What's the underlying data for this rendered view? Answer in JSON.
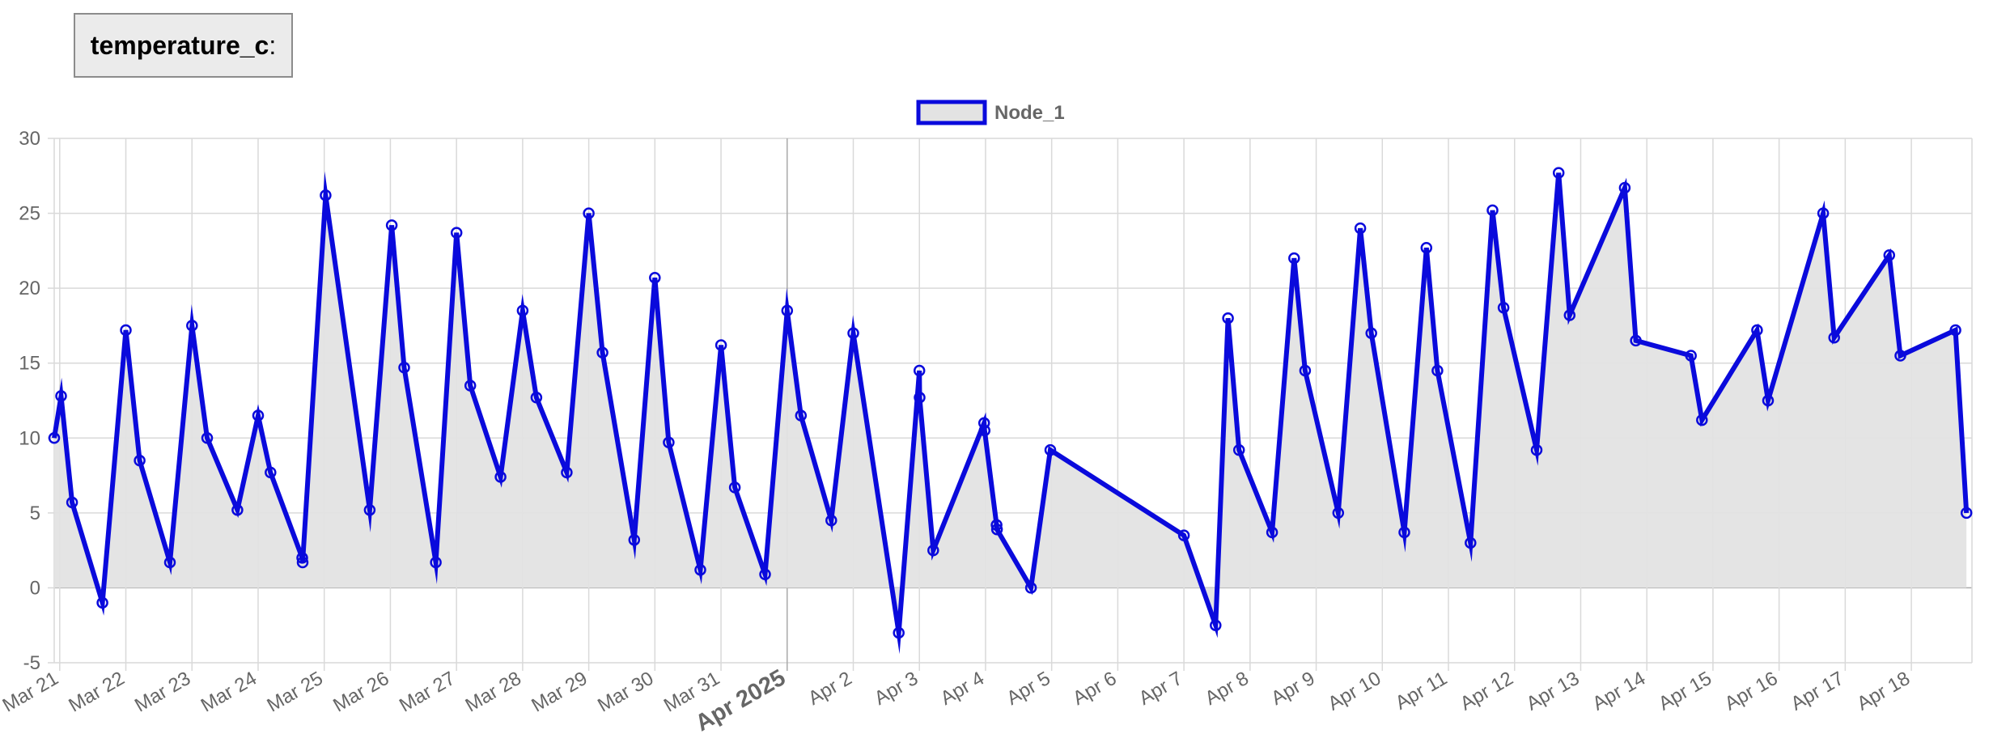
{
  "field": {
    "name": "temperature_c",
    "suffix": ":"
  },
  "colors": {
    "series": "#0a0adc",
    "fill": "#e3e3e3",
    "grid": "#d9d9d9",
    "axis": "#999999",
    "tick_text": "#666666"
  },
  "chart_data": {
    "type": "area",
    "title": "",
    "xlabel": "",
    "ylabel": "",
    "ylim": [
      -5,
      30
    ],
    "yticks": [
      30,
      25,
      20,
      15,
      10,
      5,
      0,
      -5
    ],
    "grid": true,
    "legend_position": "top-center",
    "xlim": [
      "2025-03-20T22:00",
      "2025-04-18T22:00"
    ],
    "xticks": [
      {
        "label": "Mar 21",
        "date": "2025-03-21",
        "major": false
      },
      {
        "label": "Mar 22",
        "date": "2025-03-22",
        "major": false
      },
      {
        "label": "Mar 23",
        "date": "2025-03-23",
        "major": false
      },
      {
        "label": "Mar 24",
        "date": "2025-03-24",
        "major": false
      },
      {
        "label": "Mar 25",
        "date": "2025-03-25",
        "major": false
      },
      {
        "label": "Mar 26",
        "date": "2025-03-26",
        "major": false
      },
      {
        "label": "Mar 27",
        "date": "2025-03-27",
        "major": false
      },
      {
        "label": "Mar 28",
        "date": "2025-03-28",
        "major": false
      },
      {
        "label": "Mar 29",
        "date": "2025-03-29",
        "major": false
      },
      {
        "label": "Mar 30",
        "date": "2025-03-30",
        "major": false
      },
      {
        "label": "Mar 31",
        "date": "2025-03-31",
        "major": false
      },
      {
        "label": "Apr 2025",
        "date": "2025-04-01",
        "major": true
      },
      {
        "label": "Apr 2",
        "date": "2025-04-02",
        "major": false
      },
      {
        "label": "Apr 3",
        "date": "2025-04-03",
        "major": false
      },
      {
        "label": "Apr 4",
        "date": "2025-04-04",
        "major": false
      },
      {
        "label": "Apr 5",
        "date": "2025-04-05",
        "major": false
      },
      {
        "label": "Apr 6",
        "date": "2025-04-06",
        "major": false
      },
      {
        "label": "Apr 7",
        "date": "2025-04-07",
        "major": false
      },
      {
        "label": "Apr 8",
        "date": "2025-04-08",
        "major": false
      },
      {
        "label": "Apr 9",
        "date": "2025-04-09",
        "major": false
      },
      {
        "label": "Apr 10",
        "date": "2025-04-10",
        "major": false
      },
      {
        "label": "Apr 11",
        "date": "2025-04-11",
        "major": false
      },
      {
        "label": "Apr 12",
        "date": "2025-04-12",
        "major": false
      },
      {
        "label": "Apr 13",
        "date": "2025-04-13",
        "major": false
      },
      {
        "label": "Apr 14",
        "date": "2025-04-14",
        "major": false
      },
      {
        "label": "Apr 15",
        "date": "2025-04-15",
        "major": false
      },
      {
        "label": "Apr 16",
        "date": "2025-04-16",
        "major": false
      },
      {
        "label": "Apr 17",
        "date": "2025-04-17",
        "major": false
      },
      {
        "label": "Apr 18",
        "date": "2025-04-18",
        "major": false
      }
    ],
    "series": [
      {
        "name": "Node_1",
        "points": [
          {
            "x": "2025-03-20T22:00",
            "y": 10
          },
          {
            "x": "2025-03-21T00:30",
            "y": 12.8
          },
          {
            "x": "2025-03-21T04:30",
            "y": 5.7
          },
          {
            "x": "2025-03-21T15:30",
            "y": -1
          },
          {
            "x": "2025-03-22T00:00",
            "y": 17.2
          },
          {
            "x": "2025-03-22T05:00",
            "y": 8.5
          },
          {
            "x": "2025-03-22T16:00",
            "y": 1.7
          },
          {
            "x": "2025-03-23T00:00",
            "y": 17.5
          },
          {
            "x": "2025-03-23T05:30",
            "y": 10
          },
          {
            "x": "2025-03-23T16:30",
            "y": 5.2
          },
          {
            "x": "2025-03-24T00:00",
            "y": 11.5
          },
          {
            "x": "2025-03-24T04:30",
            "y": 7.7
          },
          {
            "x": "2025-03-24T16:00",
            "y": 2
          },
          {
            "x": "2025-03-24T16:10",
            "y": 1.7
          },
          {
            "x": "2025-03-25T00:30",
            "y": 26.2
          },
          {
            "x": "2025-03-25T16:30",
            "y": 5.2
          },
          {
            "x": "2025-03-26T00:30",
            "y": 24.2
          },
          {
            "x": "2025-03-26T05:00",
            "y": 14.7
          },
          {
            "x": "2025-03-26T16:30",
            "y": 1.7
          },
          {
            "x": "2025-03-27T00:00",
            "y": 23.7
          },
          {
            "x": "2025-03-27T05:00",
            "y": 13.5
          },
          {
            "x": "2025-03-27T16:00",
            "y": 7.4
          },
          {
            "x": "2025-03-28T00:00",
            "y": 18.5
          },
          {
            "x": "2025-03-28T05:00",
            "y": 12.7
          },
          {
            "x": "2025-03-28T16:00",
            "y": 7.7
          },
          {
            "x": "2025-03-29T00:00",
            "y": 25
          },
          {
            "x": "2025-03-29T05:00",
            "y": 15.7
          },
          {
            "x": "2025-03-29T16:30",
            "y": 3.2
          },
          {
            "x": "2025-03-30T00:00",
            "y": 20.7
          },
          {
            "x": "2025-03-30T05:00",
            "y": 9.7
          },
          {
            "x": "2025-03-30T16:30",
            "y": 1.2
          },
          {
            "x": "2025-03-31T00:00",
            "y": 16.2
          },
          {
            "x": "2025-03-31T05:00",
            "y": 6.7
          },
          {
            "x": "2025-03-31T16:00",
            "y": 0.9
          },
          {
            "x": "2025-04-01T00:00",
            "y": 18.5
          },
          {
            "x": "2025-04-01T05:00",
            "y": 11.5
          },
          {
            "x": "2025-04-01T16:00",
            "y": 4.5
          },
          {
            "x": "2025-04-02T00:00",
            "y": 17
          },
          {
            "x": "2025-04-02T16:30",
            "y": -3
          },
          {
            "x": "2025-04-03T00:00",
            "y": 14.5
          },
          {
            "x": "2025-04-03T00:05",
            "y": 12.7
          },
          {
            "x": "2025-04-03T05:00",
            "y": 2.5
          },
          {
            "x": "2025-04-03T23:30",
            "y": 11
          },
          {
            "x": "2025-04-03T23:40",
            "y": 10.5
          },
          {
            "x": "2025-04-04T04:00",
            "y": 4.2
          },
          {
            "x": "2025-04-04T04:10",
            "y": 3.9
          },
          {
            "x": "2025-04-04T16:30",
            "y": 0
          },
          {
            "x": "2025-04-04T23:30",
            "y": 9.2
          },
          {
            "x": "2025-04-07T00:00",
            "y": 3.5
          },
          {
            "x": "2025-04-07T11:30",
            "y": -2.5
          },
          {
            "x": "2025-04-07T16:00",
            "y": 18
          },
          {
            "x": "2025-04-07T20:00",
            "y": 9.2
          },
          {
            "x": "2025-04-08T08:00",
            "y": 3.7
          },
          {
            "x": "2025-04-08T16:00",
            "y": 22
          },
          {
            "x": "2025-04-08T20:00",
            "y": 14.5
          },
          {
            "x": "2025-04-09T08:00",
            "y": 5
          },
          {
            "x": "2025-04-09T16:00",
            "y": 24
          },
          {
            "x": "2025-04-09T20:00",
            "y": 17
          },
          {
            "x": "2025-04-10T08:00",
            "y": 3.7
          },
          {
            "x": "2025-04-10T16:00",
            "y": 22.7
          },
          {
            "x": "2025-04-10T20:00",
            "y": 14.5
          },
          {
            "x": "2025-04-11T08:00",
            "y": 3
          },
          {
            "x": "2025-04-11T16:00",
            "y": 25.2
          },
          {
            "x": "2025-04-11T20:00",
            "y": 18.7
          },
          {
            "x": "2025-04-12T08:00",
            "y": 9.2
          },
          {
            "x": "2025-04-12T16:00",
            "y": 27.7
          },
          {
            "x": "2025-04-12T20:00",
            "y": 18.2
          },
          {
            "x": "2025-04-13T16:00",
            "y": 26.7
          },
          {
            "x": "2025-04-13T20:00",
            "y": 16.5
          },
          {
            "x": "2025-04-14T16:00",
            "y": 15.5
          },
          {
            "x": "2025-04-14T20:00",
            "y": 11.2
          },
          {
            "x": "2025-04-15T16:00",
            "y": 17.2
          },
          {
            "x": "2025-04-15T20:00",
            "y": 12.5
          },
          {
            "x": "2025-04-16T16:00",
            "y": 25
          },
          {
            "x": "2025-04-16T20:00",
            "y": 16.7
          },
          {
            "x": "2025-04-17T16:00",
            "y": 22.2
          },
          {
            "x": "2025-04-17T20:00",
            "y": 15.5
          },
          {
            "x": "2025-04-18T16:00",
            "y": 17.2
          },
          {
            "x": "2025-04-18T20:00",
            "y": 5
          }
        ]
      }
    ]
  }
}
